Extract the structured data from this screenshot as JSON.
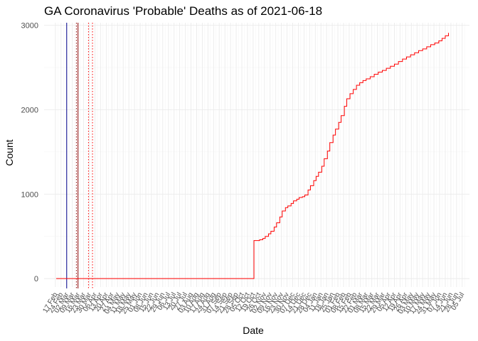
{
  "chart_data": {
    "type": "line",
    "title": "GA Coronavirus 'Probable' Deaths as of 2021-06-18",
    "xlabel": "Date",
    "ylabel": "Count",
    "ylim": [
      -100,
      3030
    ],
    "xlim": [
      "2020-02-03",
      "2021-07-14"
    ],
    "y_ticks": [
      0,
      1000,
      2000,
      3000
    ],
    "x_tick_dates": [
      "2020-02-17",
      "2020-02-24",
      "2020-03-02",
      "2020-03-09",
      "2020-03-16",
      "2020-03-23",
      "2020-03-30",
      "2020-04-06",
      "2020-04-13",
      "2020-04-20",
      "2020-04-27",
      "2020-05-04",
      "2020-05-11",
      "2020-05-18",
      "2020-05-25",
      "2020-06-01",
      "2020-06-08",
      "2020-06-15",
      "2020-06-22",
      "2020-06-29",
      "2020-07-06",
      "2020-07-13",
      "2020-07-20",
      "2020-07-27",
      "2020-08-03",
      "2020-08-10",
      "2020-08-17",
      "2020-08-24",
      "2020-08-31",
      "2020-09-07",
      "2020-09-14",
      "2020-09-21",
      "2020-09-28",
      "2020-10-05",
      "2020-10-12",
      "2020-10-19",
      "2020-10-26",
      "2020-11-02",
      "2020-11-09",
      "2020-11-16",
      "2020-11-23",
      "2020-11-30",
      "2020-12-07",
      "2020-12-14",
      "2020-12-21",
      "2020-12-28",
      "2021-01-04",
      "2021-01-11",
      "2021-01-18",
      "2021-01-25",
      "2021-02-01",
      "2021-02-08",
      "2021-02-15",
      "2021-02-22",
      "2021-03-01",
      "2021-03-08",
      "2021-03-15",
      "2021-03-22",
      "2021-03-29",
      "2021-04-05",
      "2021-04-12",
      "2021-04-19",
      "2021-04-26",
      "2021-05-03",
      "2021-05-10",
      "2021-05-17",
      "2021-05-24",
      "2021-05-31",
      "2021-06-07",
      "2021-06-14",
      "2021-06-21",
      "2021-06-28",
      "2021-07-05"
    ],
    "x_tick_labels": [
      "17 Feb",
      "24 Feb",
      "02 Mar",
      "09 Mar",
      "16 Mar",
      "23 Mar",
      "30 Mar",
      "06 Apr",
      "13 Apr",
      "20 Apr",
      "27 Apr",
      "04 May",
      "11 May",
      "18 May",
      "25 May",
      "01 Jun",
      "08 Jun",
      "15 Jun",
      "22 Jun",
      "29 Jun",
      "06 Jul",
      "13 Jul",
      "20 Jul",
      "27 Jul",
      "03 Aug",
      "10 Aug",
      "17 Aug",
      "24 Aug",
      "31 Aug",
      "07 Sep",
      "14 Sep",
      "21 Sep",
      "28 Sep",
      "05 Oct",
      "12 Oct",
      "19 Oct",
      "26 Oct",
      "02 Nov",
      "09 Nov",
      "16 Nov",
      "23 Nov",
      "30 Nov",
      "07 Dec",
      "14 Dec",
      "21 Dec",
      "28 Dec",
      "04 Jan",
      "11 Jan",
      "18 Jan",
      "25 Jan",
      "01 Feb",
      "08 Feb",
      "15 Feb",
      "22 Feb",
      "01 Mar",
      "08 Mar",
      "15 Mar",
      "22 Mar",
      "29 Mar",
      "05 Apr",
      "12 Apr",
      "19 Apr",
      "26 Apr",
      "03 May",
      "10 May",
      "17 May",
      "24 May",
      "31 May",
      "07 Jun",
      "14 Jun",
      "21 Jun",
      "28 Jun",
      "05 Jul"
    ],
    "vlines": [
      {
        "date": "2020-03-02",
        "color": "#00008B",
        "style": "solid"
      },
      {
        "date": "2020-03-14",
        "color": "#8B0000",
        "style": "dotted"
      },
      {
        "date": "2020-03-16",
        "color": "#8B0000",
        "style": "solid"
      },
      {
        "date": "2020-03-29",
        "color": "#FF0000",
        "style": "dotted"
      },
      {
        "date": "2020-04-03",
        "color": "#FF0000",
        "style": "dotted"
      }
    ],
    "series": [
      {
        "color": "#FF0000",
        "points": [
          [
            "2020-02-18",
            0
          ],
          [
            "2020-10-19",
            0
          ],
          [
            "2020-10-20",
            450
          ],
          [
            "2020-10-24",
            450
          ],
          [
            "2020-10-27",
            460
          ],
          [
            "2020-10-31",
            475
          ],
          [
            "2020-11-03",
            500
          ],
          [
            "2020-11-07",
            530
          ],
          [
            "2020-11-10",
            560
          ],
          [
            "2020-11-14",
            610
          ],
          [
            "2020-11-17",
            660
          ],
          [
            "2020-11-21",
            730
          ],
          [
            "2020-11-24",
            800
          ],
          [
            "2020-11-28",
            840
          ],
          [
            "2020-12-01",
            860
          ],
          [
            "2020-12-05",
            890
          ],
          [
            "2020-12-08",
            920
          ],
          [
            "2020-12-12",
            940
          ],
          [
            "2020-12-15",
            960
          ],
          [
            "2020-12-19",
            970
          ],
          [
            "2020-12-22",
            990
          ],
          [
            "2020-12-26",
            1050
          ],
          [
            "2020-12-29",
            1100
          ],
          [
            "2021-01-02",
            1160
          ],
          [
            "2021-01-05",
            1210
          ],
          [
            "2021-01-08",
            1260
          ],
          [
            "2021-01-12",
            1330
          ],
          [
            "2021-01-15",
            1420
          ],
          [
            "2021-01-19",
            1510
          ],
          [
            "2021-01-22",
            1610
          ],
          [
            "2021-01-26",
            1700
          ],
          [
            "2021-01-29",
            1770
          ],
          [
            "2021-02-02",
            1850
          ],
          [
            "2021-02-05",
            1930
          ],
          [
            "2021-02-09",
            2040
          ],
          [
            "2021-02-12",
            2130
          ],
          [
            "2021-02-16",
            2190
          ],
          [
            "2021-02-20",
            2240
          ],
          [
            "2021-02-24",
            2290
          ],
          [
            "2021-02-28",
            2320
          ],
          [
            "2021-03-04",
            2345
          ],
          [
            "2021-03-08",
            2365
          ],
          [
            "2021-03-13",
            2390
          ],
          [
            "2021-03-18",
            2420
          ],
          [
            "2021-03-23",
            2445
          ],
          [
            "2021-03-28",
            2465
          ],
          [
            "2021-04-02",
            2490
          ],
          [
            "2021-04-07",
            2515
          ],
          [
            "2021-04-12",
            2540
          ],
          [
            "2021-04-17",
            2570
          ],
          [
            "2021-04-22",
            2600
          ],
          [
            "2021-04-27",
            2625
          ],
          [
            "2021-05-02",
            2650
          ],
          [
            "2021-05-07",
            2675
          ],
          [
            "2021-05-12",
            2700
          ],
          [
            "2021-05-17",
            2720
          ],
          [
            "2021-05-22",
            2745
          ],
          [
            "2021-05-27",
            2770
          ],
          [
            "2021-06-01",
            2790
          ],
          [
            "2021-06-06",
            2815
          ],
          [
            "2021-06-10",
            2845
          ],
          [
            "2021-06-14",
            2875
          ],
          [
            "2021-06-18",
            2910
          ]
        ]
      }
    ],
    "grid": true
  }
}
